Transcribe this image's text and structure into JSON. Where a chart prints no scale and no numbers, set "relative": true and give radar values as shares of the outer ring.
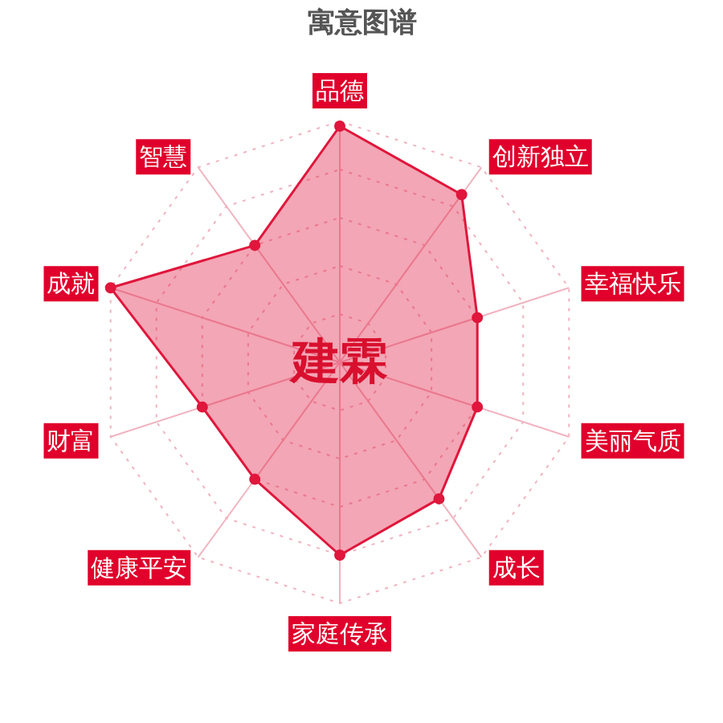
{
  "chart_data": {
    "type": "radar",
    "title": "寓意图谱",
    "categories": [
      "品德",
      "创新独立",
      "幸福快乐",
      "美丽气质",
      "成长",
      "家庭传承",
      "健康平安",
      "财富",
      "成就",
      "智慧"
    ],
    "relative": true,
    "series": [
      {
        "color": "#e0163c",
        "values": [
          0.98,
          0.86,
          0.6,
          0.6,
          0.7,
          0.8,
          0.6,
          0.6,
          1.0,
          0.6
        ]
      }
    ],
    "annotations": [
      "建霖"
    ],
    "grid": true,
    "marker": "circle",
    "line_style": "solid"
  }
}
